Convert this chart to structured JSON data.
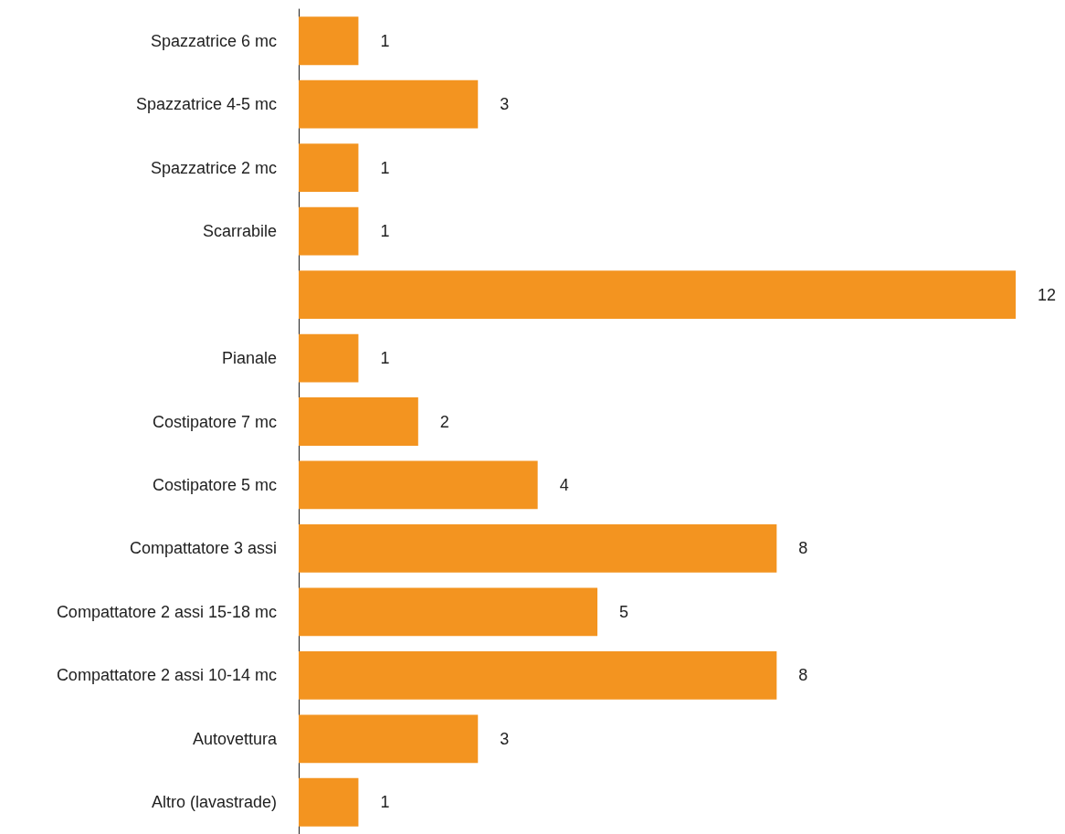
{
  "chart_data": {
    "type": "bar",
    "orientation": "horizontal",
    "categories": [
      "Spazzatrice 6 mc",
      "Spazzatrice 4-5 mc",
      "Spazzatrice 2 mc",
      "Scarrabile",
      null,
      "Pianale",
      "Costipatore 7 mc",
      "Costipatore 5 mc",
      "Compattatore 3 assi",
      "Compattatore 2 assi 15-18 mc",
      "Compattatore 2 assi 10-14 mc",
      "Autovettura",
      "Altro (lavastrade)"
    ],
    "values": [
      1,
      3,
      1,
      1,
      12,
      1,
      2,
      4,
      8,
      5,
      8,
      3,
      1
    ],
    "color": "#f39420",
    "data_labels": true
  }
}
